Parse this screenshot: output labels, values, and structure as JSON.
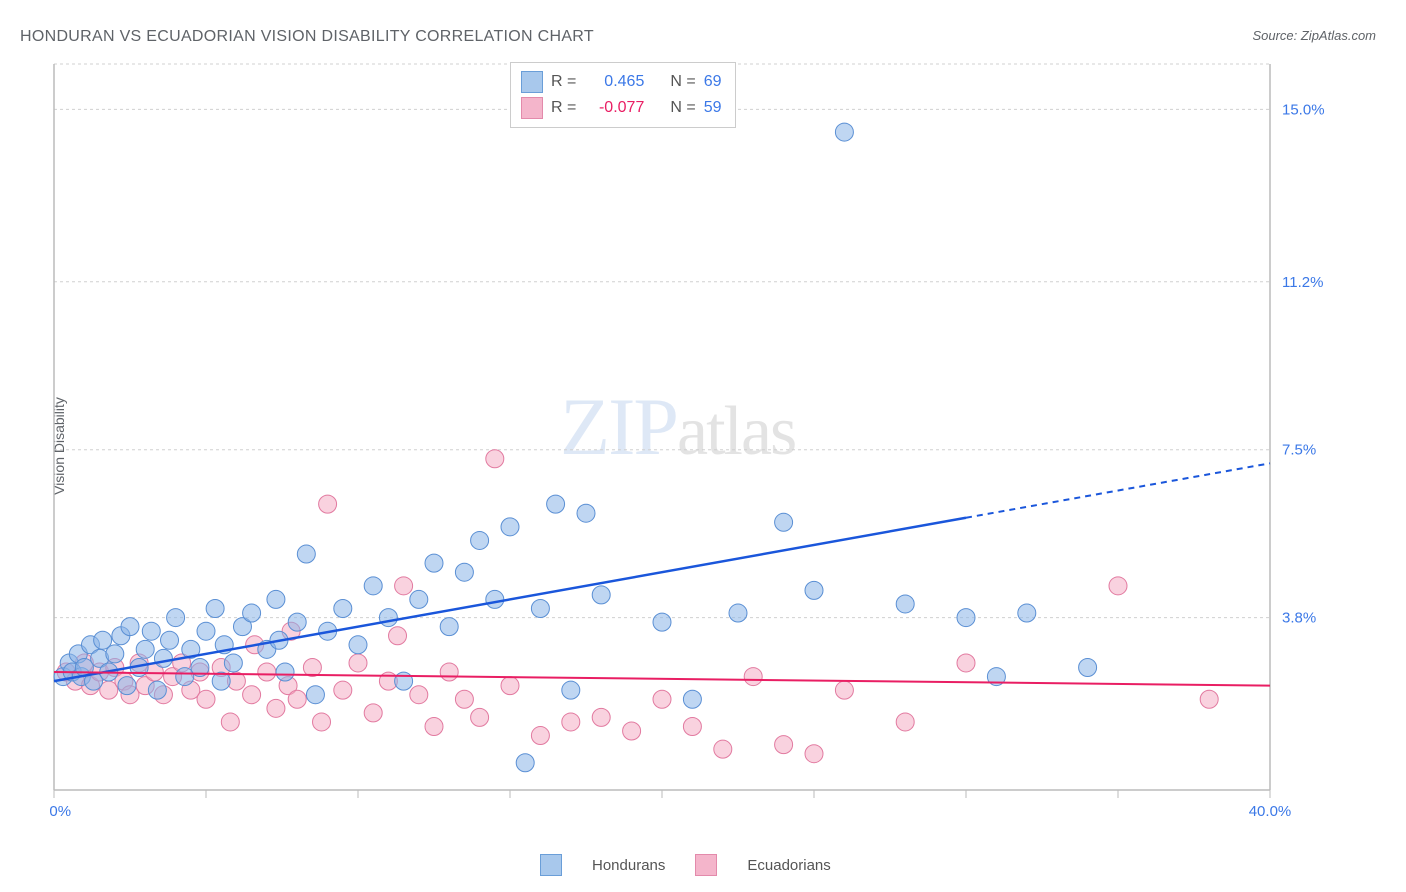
{
  "title": "HONDURAN VS ECUADORIAN VISION DISABILITY CORRELATION CHART",
  "source_label": "Source: ZipAtlas.com",
  "y_axis_label": "Vision Disability",
  "watermark": {
    "part1": "ZIP",
    "part2": "atlas"
  },
  "chart": {
    "type": "scatter",
    "x_range": [
      0,
      40
    ],
    "y_range": [
      0,
      16
    ],
    "background_color": "#ffffff",
    "grid_color": "#d0d0d0",
    "grid_dash": "3,3",
    "axis_color": "#bbbbbb",
    "marker_radius": 9,
    "x_ticks": [
      0,
      5,
      10,
      15,
      20,
      25,
      30,
      35,
      40
    ],
    "x_tick_labels_shown": {
      "0": "0.0%",
      "40": "40.0%"
    },
    "y_ticks": [
      3.8,
      7.5,
      11.2,
      15.0
    ],
    "y_tick_labels": [
      "3.8%",
      "7.5%",
      "11.2%",
      "15.0%"
    ],
    "y_tick_label_color": "#3b78e7",
    "x_tick_label_color": "#3b78e7",
    "series": [
      {
        "name": "Hondurans",
        "fill": "#8bb5e8",
        "stroke": "#5a8fd4",
        "fill_opacity": 0.55,
        "r_value": "0.465",
        "n_value": "69",
        "trend": {
          "color": "#1a56db",
          "width": 2.5,
          "x1": 0,
          "y1": 2.4,
          "x2": 30,
          "y2": 6.0,
          "dash_x2": 40,
          "dash_y2": 7.2
        },
        "points": [
          [
            0.3,
            2.5
          ],
          [
            0.5,
            2.8
          ],
          [
            0.6,
            2.6
          ],
          [
            0.8,
            3.0
          ],
          [
            0.9,
            2.5
          ],
          [
            1.0,
            2.7
          ],
          [
            1.2,
            3.2
          ],
          [
            1.3,
            2.4
          ],
          [
            1.5,
            2.9
          ],
          [
            1.6,
            3.3
          ],
          [
            1.8,
            2.6
          ],
          [
            2.0,
            3.0
          ],
          [
            2.2,
            3.4
          ],
          [
            2.4,
            2.3
          ],
          [
            2.5,
            3.6
          ],
          [
            2.8,
            2.7
          ],
          [
            3.0,
            3.1
          ],
          [
            3.2,
            3.5
          ],
          [
            3.4,
            2.2
          ],
          [
            3.6,
            2.9
          ],
          [
            3.8,
            3.3
          ],
          [
            4.0,
            3.8
          ],
          [
            4.3,
            2.5
          ],
          [
            4.5,
            3.1
          ],
          [
            4.8,
            2.7
          ],
          [
            5.0,
            3.5
          ],
          [
            5.3,
            4.0
          ],
          [
            5.5,
            2.4
          ],
          [
            5.6,
            3.2
          ],
          [
            5.9,
            2.8
          ],
          [
            6.2,
            3.6
          ],
          [
            6.5,
            3.9
          ],
          [
            7.0,
            3.1
          ],
          [
            7.3,
            4.2
          ],
          [
            7.4,
            3.3
          ],
          [
            7.6,
            2.6
          ],
          [
            8.0,
            3.7
          ],
          [
            8.3,
            5.2
          ],
          [
            8.6,
            2.1
          ],
          [
            9.0,
            3.5
          ],
          [
            9.5,
            4.0
          ],
          [
            10.0,
            3.2
          ],
          [
            10.5,
            4.5
          ],
          [
            11.0,
            3.8
          ],
          [
            11.5,
            2.4
          ],
          [
            12.0,
            4.2
          ],
          [
            12.5,
            5.0
          ],
          [
            13.0,
            3.6
          ],
          [
            13.5,
            4.8
          ],
          [
            14.0,
            5.5
          ],
          [
            14.5,
            4.2
          ],
          [
            15.0,
            5.8
          ],
          [
            15.5,
            0.6
          ],
          [
            16.0,
            4.0
          ],
          [
            16.5,
            6.3
          ],
          [
            17.0,
            2.2
          ],
          [
            17.5,
            6.1
          ],
          [
            18.0,
            4.3
          ],
          [
            20.0,
            3.7
          ],
          [
            21.0,
            2.0
          ],
          [
            22.5,
            3.9
          ],
          [
            24.0,
            5.9
          ],
          [
            25.0,
            4.4
          ],
          [
            26.0,
            14.5
          ],
          [
            28.0,
            4.1
          ],
          [
            30.0,
            3.8
          ],
          [
            31.0,
            2.5
          ],
          [
            32.0,
            3.9
          ],
          [
            34.0,
            2.7
          ]
        ]
      },
      {
        "name": "Ecuadorians",
        "fill": "#f4a6c0",
        "stroke": "#e27aa0",
        "fill_opacity": 0.5,
        "r_value": "-0.077",
        "n_value": "59",
        "trend": {
          "color": "#e91e63",
          "width": 2,
          "x1": 0,
          "y1": 2.6,
          "x2": 40,
          "y2": 2.3
        },
        "points": [
          [
            0.4,
            2.6
          ],
          [
            0.7,
            2.4
          ],
          [
            1.0,
            2.8
          ],
          [
            1.2,
            2.3
          ],
          [
            1.5,
            2.6
          ],
          [
            1.8,
            2.2
          ],
          [
            2.0,
            2.7
          ],
          [
            2.3,
            2.4
          ],
          [
            2.5,
            2.1
          ],
          [
            2.8,
            2.8
          ],
          [
            3.0,
            2.3
          ],
          [
            3.3,
            2.6
          ],
          [
            3.6,
            2.1
          ],
          [
            3.9,
            2.5
          ],
          [
            4.2,
            2.8
          ],
          [
            4.5,
            2.2
          ],
          [
            4.8,
            2.6
          ],
          [
            5.0,
            2.0
          ],
          [
            5.5,
            2.7
          ],
          [
            5.8,
            1.5
          ],
          [
            6.0,
            2.4
          ],
          [
            6.5,
            2.1
          ],
          [
            6.6,
            3.2
          ],
          [
            7.0,
            2.6
          ],
          [
            7.3,
            1.8
          ],
          [
            7.7,
            2.3
          ],
          [
            7.8,
            3.5
          ],
          [
            8.0,
            2.0
          ],
          [
            8.5,
            2.7
          ],
          [
            8.8,
            1.5
          ],
          [
            9.0,
            6.3
          ],
          [
            9.5,
            2.2
          ],
          [
            10.0,
            2.8
          ],
          [
            10.5,
            1.7
          ],
          [
            11.0,
            2.4
          ],
          [
            11.3,
            3.4
          ],
          [
            11.5,
            4.5
          ],
          [
            12.0,
            2.1
          ],
          [
            12.5,
            1.4
          ],
          [
            13.0,
            2.6
          ],
          [
            13.5,
            2.0
          ],
          [
            14.0,
            1.6
          ],
          [
            14.5,
            7.3
          ],
          [
            15.0,
            2.3
          ],
          [
            16.0,
            1.2
          ],
          [
            17.0,
            1.5
          ],
          [
            18.0,
            1.6
          ],
          [
            19.0,
            1.3
          ],
          [
            20.0,
            2.0
          ],
          [
            21.0,
            1.4
          ],
          [
            22.0,
            0.9
          ],
          [
            23.0,
            2.5
          ],
          [
            24.0,
            1.0
          ],
          [
            25.0,
            0.8
          ],
          [
            26.0,
            2.2
          ],
          [
            28.0,
            1.5
          ],
          [
            30.0,
            2.8
          ],
          [
            35.0,
            4.5
          ],
          [
            38.0,
            2.0
          ]
        ]
      }
    ]
  },
  "stats_box": {
    "border_color": "#cccccc",
    "rows": [
      {
        "swatch": "blue",
        "r_label": "R =",
        "r_val": "0.465",
        "r_class": "stats-val-blue",
        "n_label": "N =",
        "n_val": "69"
      },
      {
        "swatch": "pink",
        "r_label": "R =",
        "r_val": "-0.077",
        "r_class": "stats-val-pink",
        "n_label": "N =",
        "n_val": "59"
      }
    ]
  },
  "bottom_legend": [
    {
      "swatch": "blue",
      "label": "Hondurans"
    },
    {
      "swatch": "pink",
      "label": "Ecuadorians"
    }
  ]
}
